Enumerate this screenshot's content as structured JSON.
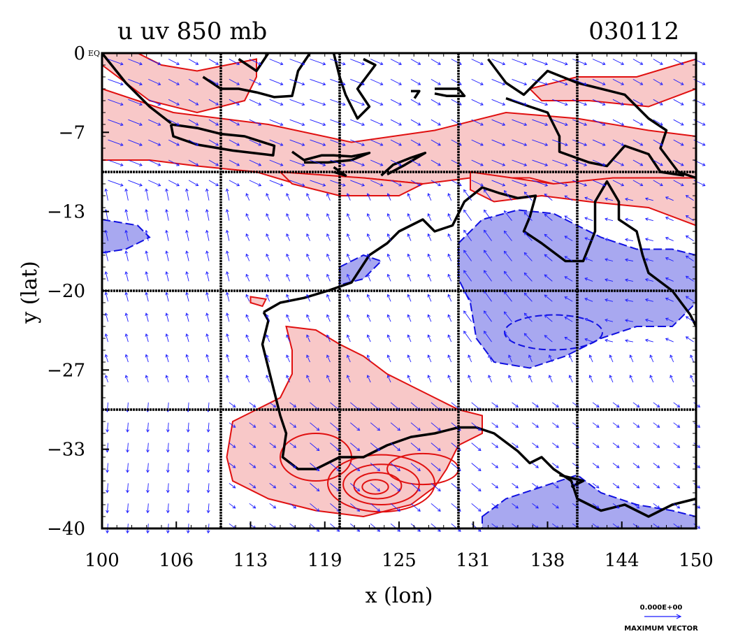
{
  "title_left": "u uv 850 mb",
  "title_right": "030112",
  "eq_label": "EQ",
  "x_axis": {
    "label": "x (lon)",
    "ticks": [
      "100",
      "106",
      "113",
      "119",
      "125",
      "131",
      "138",
      "144",
      "150"
    ],
    "range": [
      100,
      150
    ]
  },
  "y_axis": {
    "label": "y (lat)",
    "ticks": [
      "0",
      "−7",
      "−13",
      "−20",
      "−27",
      "−33",
      "−40"
    ],
    "range": [
      -40,
      0
    ]
  },
  "vector_legend": {
    "value": "0.000E+00",
    "label": "MAXIMUM VECTOR"
  },
  "colors": {
    "positive_fill": "#f8c8c8",
    "positive_contour": "#e01010",
    "negative_fill": "#a8a8f0",
    "negative_contour": "#1010e0",
    "vectors": "#1a1aff",
    "coast": "#000000"
  },
  "chart_data": {
    "type": "map",
    "projection": "lat-lon",
    "xlim": [
      100,
      150
    ],
    "ylim": [
      -40,
      0
    ],
    "grid": true,
    "gridlines_lon": [
      110,
      120,
      130,
      140
    ],
    "gridlines_lat": [
      -10,
      -20,
      -30
    ],
    "fields": [
      "u (shaded contours)",
      "uv (wind vectors)"
    ]
  }
}
